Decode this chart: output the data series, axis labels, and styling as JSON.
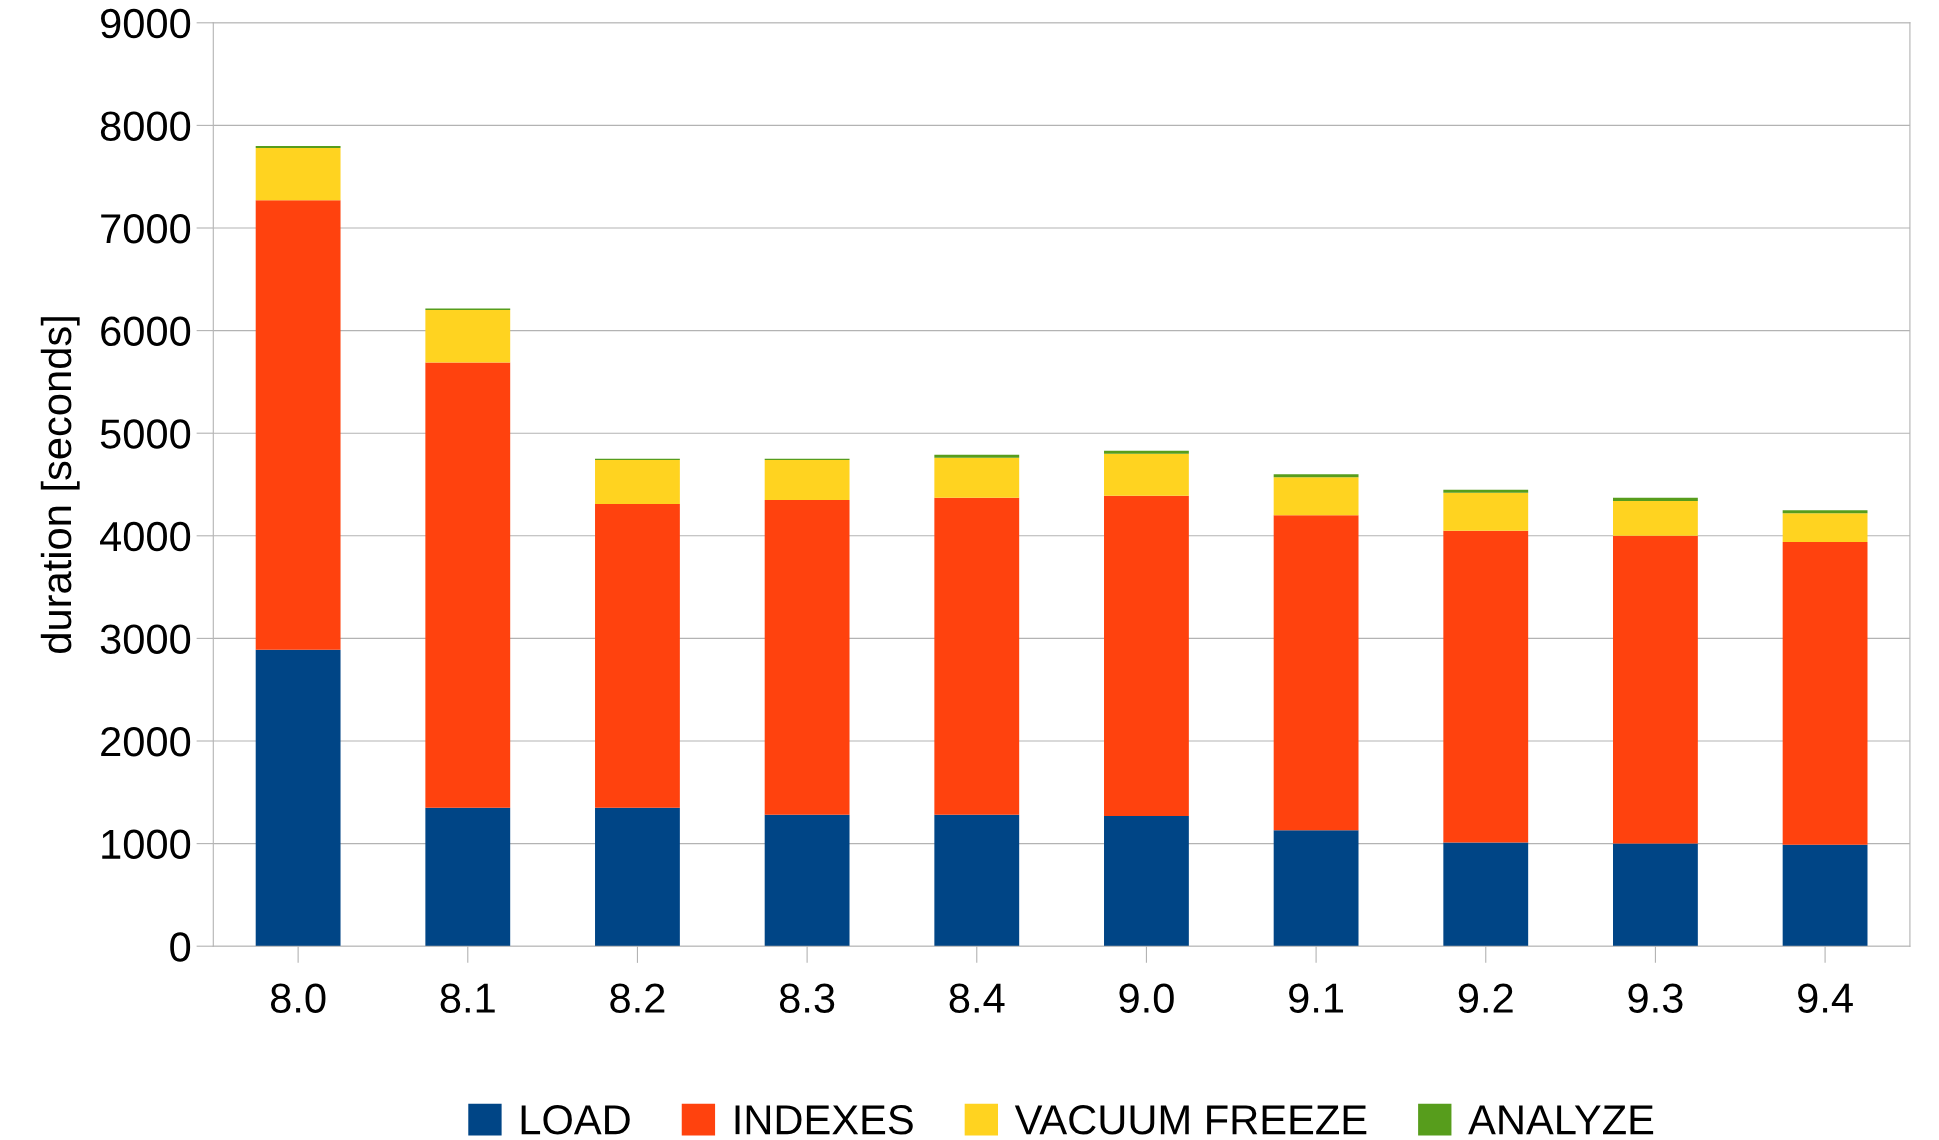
{
  "chart_data": {
    "type": "bar",
    "stacked": true,
    "ylabel": "duration [seconds]",
    "categories": [
      "8.0",
      "8.1",
      "8.2",
      "8.3",
      "8.4",
      "9.0",
      "9.1",
      "9.2",
      "9.3",
      "9.4"
    ],
    "series": [
      {
        "name": "LOAD",
        "color": "#004586",
        "values": [
          2890,
          1350,
          1350,
          1280,
          1280,
          1270,
          1130,
          1010,
          1000,
          990
        ]
      },
      {
        "name": "INDEXES",
        "color": "#ff420e",
        "values": [
          4380,
          4340,
          2960,
          3070,
          3090,
          3120,
          3070,
          3040,
          3000,
          2950
        ]
      },
      {
        "name": "VACUUM FREEZE",
        "color": "#ffd320",
        "values": [
          510,
          510,
          430,
          390,
          390,
          410,
          370,
          370,
          340,
          280
        ]
      },
      {
        "name": "ANALYZE",
        "color": "#579d1c",
        "values": [
          20,
          15,
          10,
          10,
          30,
          30,
          30,
          30,
          30,
          30
        ]
      }
    ],
    "ylim": [
      0,
      9000
    ],
    "yticks": [
      0,
      1000,
      2000,
      3000,
      4000,
      5000,
      6000,
      7000,
      8000,
      9000
    ],
    "grid": "y",
    "legend": "bottom"
  }
}
